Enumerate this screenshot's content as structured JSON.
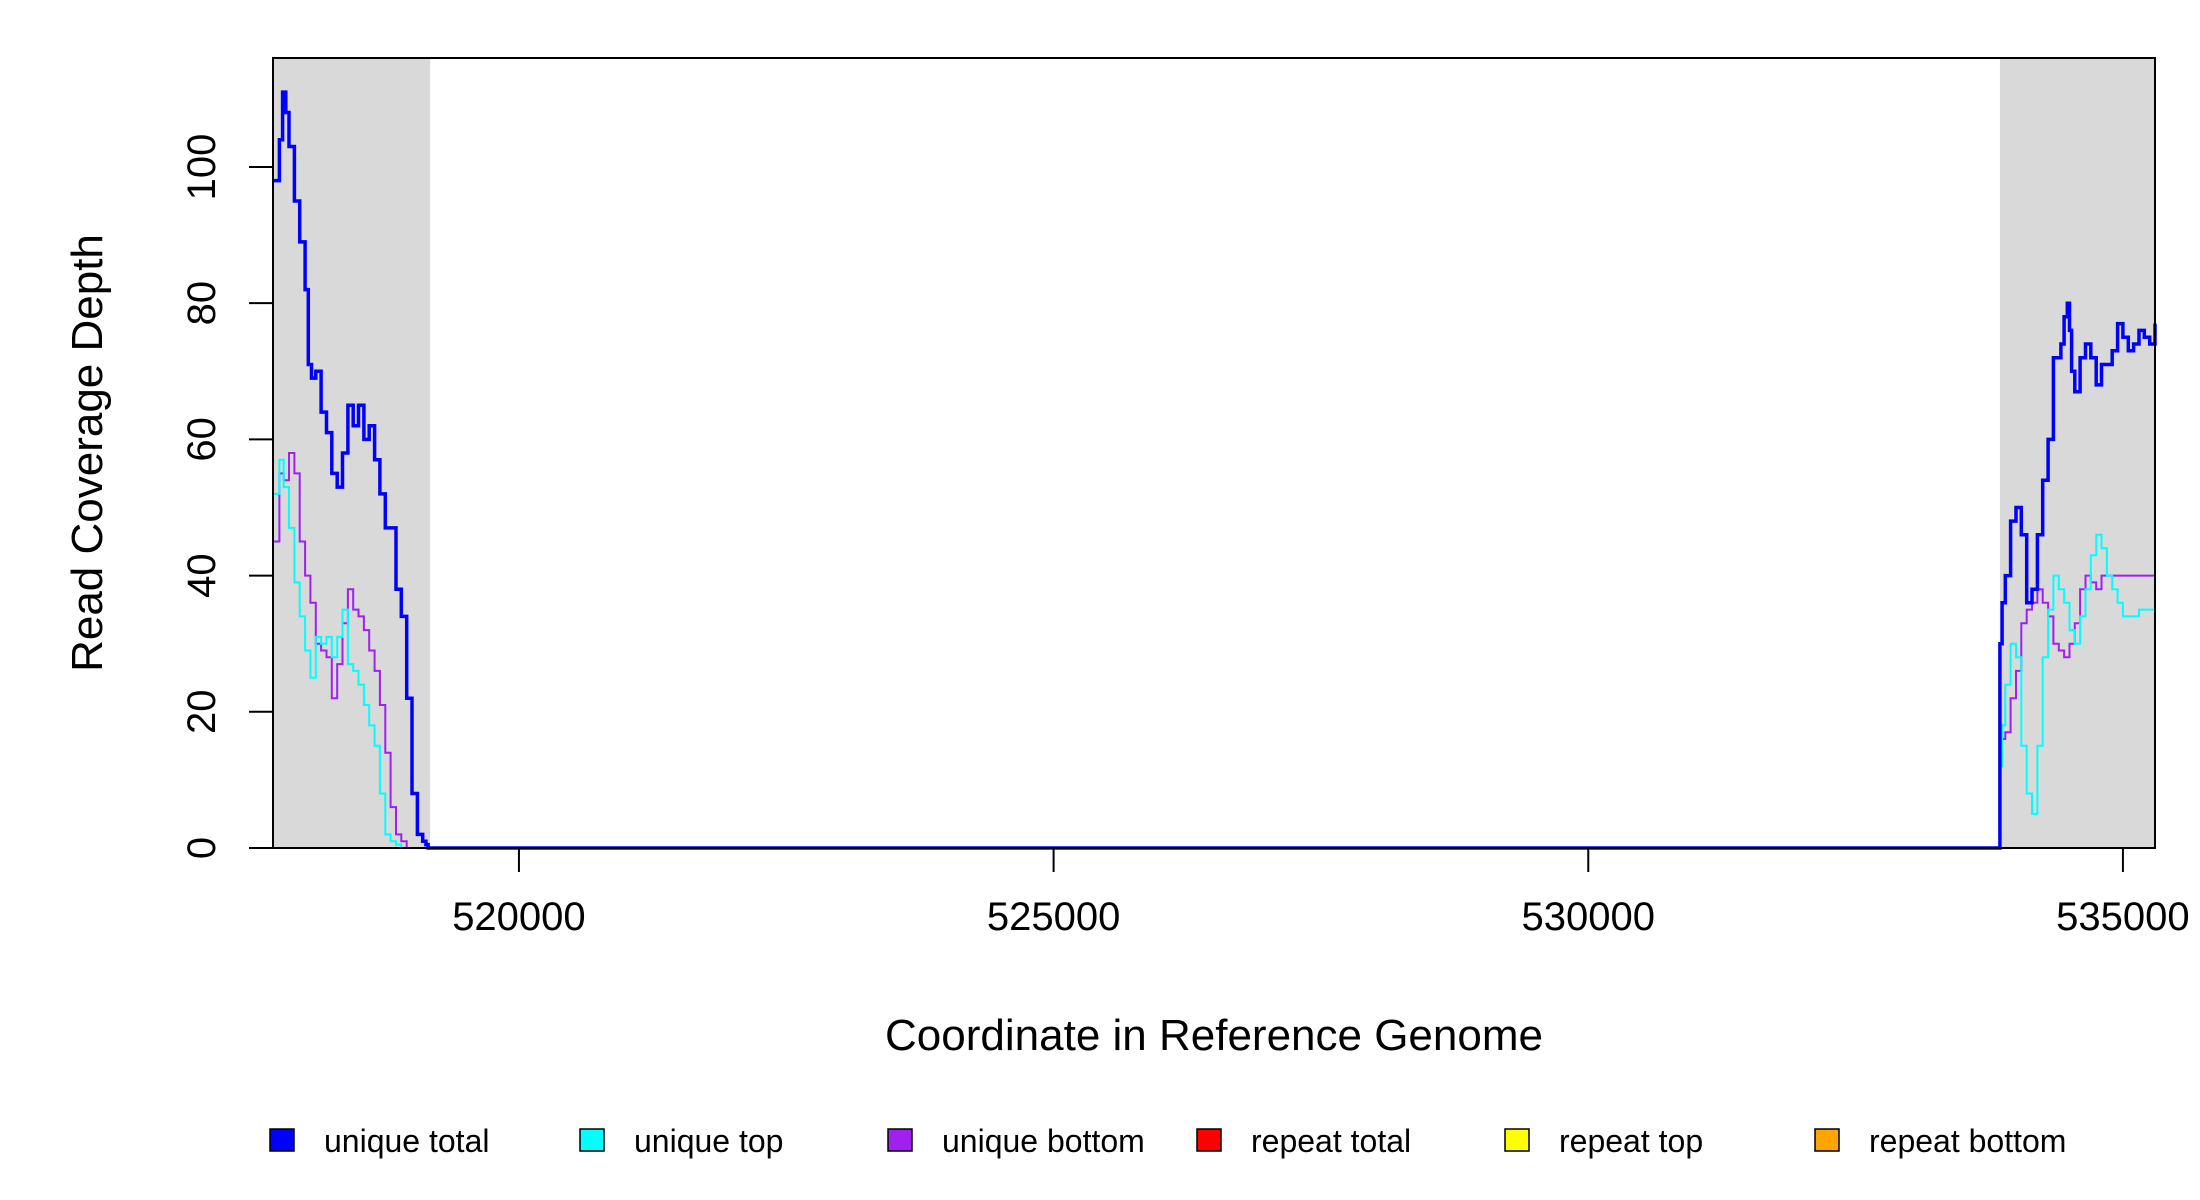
{
  "chart_data": {
    "type": "line",
    "title": "",
    "xlabel": "Coordinate in Reference Genome",
    "ylabel": "Read Coverage Depth",
    "xlim": [
      517700,
      535300
    ],
    "ylim": [
      0,
      116
    ],
    "x_ticks": [
      520000,
      525000,
      530000,
      535000
    ],
    "y_ticks": [
      0,
      20,
      40,
      60,
      80,
      100
    ],
    "shaded_regions": [
      {
        "x_start": 517700,
        "x_end": 519170
      },
      {
        "x_start": 533850,
        "x_end": 535300
      }
    ],
    "legend_position": "bottom",
    "series": [
      {
        "name": "unique total",
        "color": "#0000ff",
        "x": [
          517700,
          517760,
          517790,
          517820,
          517850,
          517900,
          517950,
          518000,
          518030,
          518060,
          518100,
          518150,
          518200,
          518250,
          518300,
          518350,
          518400,
          518450,
          518500,
          518550,
          518600,
          518650,
          518700,
          518750,
          518800,
          518850,
          518900,
          518950,
          519000,
          519050,
          519100,
          519130,
          519150,
          519160,
          519170,
          519180,
          519200,
          533800,
          533850,
          533870,
          533900,
          533950,
          534000,
          534050,
          534100,
          534150,
          534200,
          534250,
          534300,
          534350,
          534400,
          534420,
          534450,
          534480,
          534500,
          534520,
          534550,
          534600,
          534650,
          534700,
          534750,
          534800,
          534850,
          534900,
          534950,
          535000,
          535050,
          535100,
          535150,
          535200,
          535250,
          535300
        ],
        "y": [
          98,
          104,
          111,
          108,
          103,
          95,
          89,
          82,
          71,
          69,
          70,
          64,
          61,
          55,
          53,
          58,
          65,
          62,
          65,
          60,
          62,
          57,
          52,
          47,
          47,
          38,
          34,
          22,
          8,
          2,
          1,
          0.5,
          0,
          0,
          0,
          0,
          0,
          0,
          30,
          36,
          40,
          48,
          50,
          46,
          36,
          38,
          46,
          54,
          60,
          72,
          72,
          74,
          78,
          80,
          76,
          70,
          67,
          72,
          74,
          72,
          68,
          71,
          71,
          73,
          77,
          75,
          73,
          74,
          76,
          75,
          74,
          77
        ]
      },
      {
        "name": "unique top",
        "color": "#00ffff",
        "x": [
          517700,
          517760,
          517800,
          517850,
          517900,
          517950,
          518000,
          518050,
          518100,
          518150,
          518200,
          518250,
          518300,
          518350,
          518400,
          518450,
          518500,
          518550,
          518600,
          518650,
          518700,
          518750,
          518800,
          518850,
          518900,
          518950,
          519000,
          519050,
          519100,
          519130,
          519150,
          519170,
          519200,
          533800,
          533850,
          533870,
          533900,
          533950,
          534000,
          534050,
          534100,
          534150,
          534200,
          534250,
          534300,
          534350,
          534400,
          534450,
          534500,
          534550,
          534600,
          534650,
          534700,
          534750,
          534800,
          534850,
          534900,
          534950,
          535000,
          535050,
          535100,
          535150,
          535200,
          535250,
          535300
        ],
        "y": [
          52,
          57,
          53,
          47,
          39,
          34,
          29,
          25,
          31,
          30,
          31,
          28,
          31,
          35,
          27,
          26,
          24,
          21,
          18,
          15,
          8,
          2,
          1,
          0.5,
          0,
          0,
          0,
          0,
          0,
          0,
          0,
          0,
          0,
          0,
          12,
          18,
          24,
          30,
          28,
          15,
          8,
          5,
          15,
          28,
          35,
          40,
          38,
          36,
          32,
          30,
          34,
          38,
          43,
          46,
          44,
          40,
          38,
          36,
          34,
          34,
          34,
          35,
          35,
          35,
          35
        ]
      },
      {
        "name": "unique bottom",
        "color": "#a020f0",
        "x": [
          517700,
          517760,
          517800,
          517850,
          517900,
          517950,
          518000,
          518050,
          518100,
          518150,
          518200,
          518250,
          518300,
          518350,
          518400,
          518450,
          518500,
          518550,
          518600,
          518650,
          518700,
          518750,
          518800,
          518850,
          518900,
          518950,
          519000,
          519050,
          519100,
          519130,
          519150,
          519170,
          519200,
          533800,
          533850,
          533870,
          533900,
          533950,
          534000,
          534050,
          534100,
          534150,
          534200,
          534250,
          534300,
          534350,
          534400,
          534450,
          534500,
          534550,
          534600,
          534650,
          534700,
          534750,
          534800,
          534850,
          534900,
          534950,
          535000,
          535050,
          535100,
          535150,
          535200,
          535250,
          535300
        ],
        "y": [
          45,
          55,
          54,
          58,
          55,
          45,
          40,
          36,
          30,
          29,
          28,
          22,
          27,
          33,
          38,
          35,
          34,
          32,
          29,
          26,
          21,
          14,
          6,
          2,
          1,
          0,
          0,
          0,
          0,
          0,
          0,
          0,
          0,
          0,
          18,
          16,
          17,
          22,
          26,
          33,
          35,
          36,
          38,
          36,
          34,
          30,
          29,
          28,
          30,
          33,
          38,
          40,
          39,
          38,
          40,
          40,
          40,
          40,
          40,
          40,
          40,
          40,
          40,
          40,
          40
        ]
      },
      {
        "name": "repeat total",
        "color": "#ff0000",
        "x": [
          517700,
          535300
        ],
        "y": [
          0,
          0
        ]
      },
      {
        "name": "repeat top",
        "color": "#ffff00",
        "x": [
          517700,
          535300
        ],
        "y": [
          0,
          0
        ]
      },
      {
        "name": "repeat bottom",
        "color": "#ffa500",
        "x": [
          517700,
          535300
        ],
        "y": [
          0,
          0
        ]
      }
    ]
  }
}
